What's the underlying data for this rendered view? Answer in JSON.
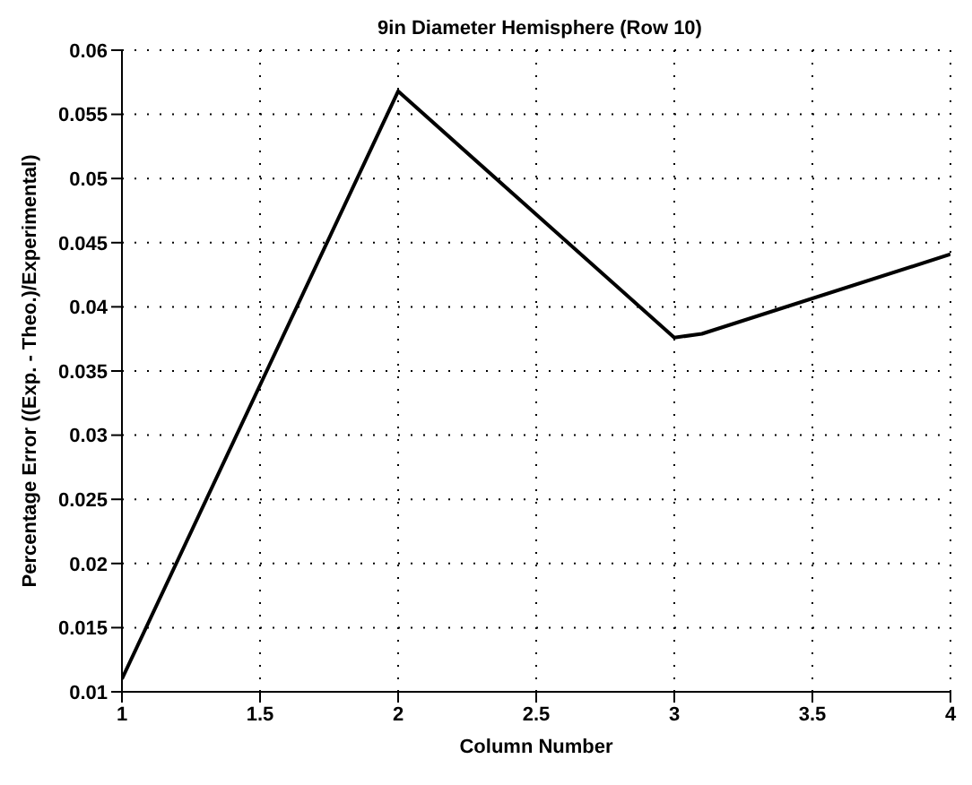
{
  "chart_data": {
    "type": "line",
    "title": "9in Diameter Hemisphere (Row 10)",
    "xlabel": "Column Number",
    "ylabel": "Percentage Error ((Exp. - Theo.)/Experimental)",
    "x": [
      1,
      2,
      3,
      3.1,
      4
    ],
    "series": [
      {
        "color": "#000000",
        "values": [
          0.011,
          0.0568,
          0.0376,
          0.0379,
          0.0441
        ]
      }
    ],
    "xlim": [
      1,
      4
    ],
    "xticks": [
      1,
      1.5,
      2,
      2.5,
      3,
      3.5,
      4
    ],
    "ylim": [
      0.01,
      0.06
    ],
    "yticks": [
      0.01,
      0.015,
      0.02,
      0.025,
      0.03,
      0.035,
      0.04,
      0.045,
      0.05,
      0.055,
      0.06
    ],
    "grid": true,
    "line_style": "solid",
    "marker": "none"
  }
}
